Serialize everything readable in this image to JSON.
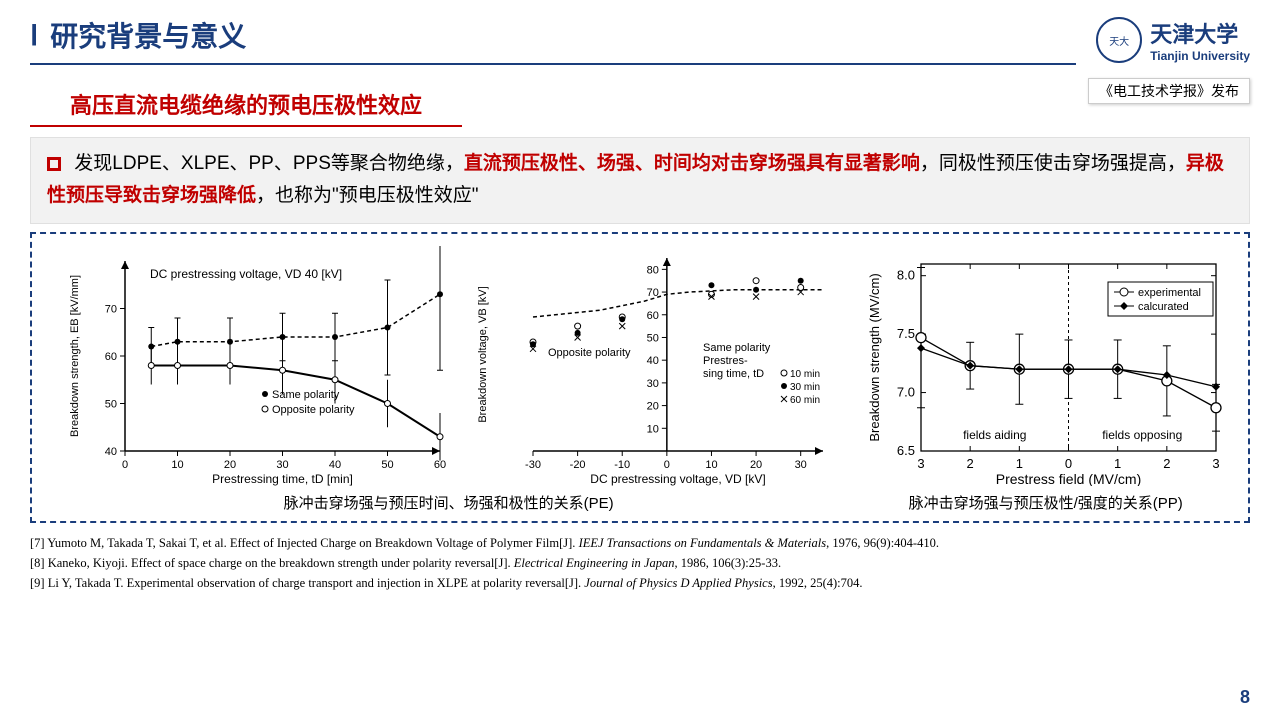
{
  "header": {
    "roman": "Ⅰ",
    "title": "研究背景与意义",
    "uni_cn": "天津大学",
    "uni_en": "Tianjin University",
    "tag": "《电工技术学报》发布"
  },
  "subtitle": "高压直流电缆绝缘的预电压极性效应",
  "textbox": {
    "t1": "发现LDPE、XLPE、PP、PPS等聚合物绝缘，",
    "t2": "直流预压极性、场强、时间均对击穿场强具有显著影响",
    "t3": "，同极性预压使击穿场强提高，",
    "t4": "异极性预压导致击穿场强降低",
    "t5": "，也称为\"预电压极性效应\""
  },
  "chart1": {
    "type": "line-with-errorbars",
    "title": "DC prestressing voltage, VD 40 [kV]",
    "ylabel": "Breakdown strength, EB [kV/mm]",
    "xlabel": "Prestressing time, tD [min]",
    "xlim": [
      0,
      60
    ],
    "ylim": [
      40,
      80
    ],
    "xticks": [
      0,
      10,
      20,
      30,
      40,
      50,
      60
    ],
    "yticks": [
      40,
      50,
      60,
      70
    ],
    "same_x": [
      5,
      10,
      20,
      30,
      40,
      50,
      60
    ],
    "same_y": [
      62,
      63,
      63,
      64,
      64,
      66,
      73
    ],
    "same_err": [
      4,
      5,
      5,
      5,
      5,
      10,
      16
    ],
    "opp_x": [
      5,
      10,
      20,
      30,
      40,
      50,
      60
    ],
    "opp_y": [
      58,
      58,
      58,
      57,
      55,
      50,
      43
    ],
    "opp_err": [
      4,
      4,
      4,
      5,
      5,
      5,
      5
    ],
    "legend1": "Same polarity",
    "legend2": "Opposite polarity",
    "line_color": "#000000",
    "bg": "#ffffff",
    "grid_color": "#000000"
  },
  "chart2": {
    "type": "scatter-line",
    "ylabel": "Breakdown voltage, VB [kV]",
    "xlabel": "DC prestressing voltage, VD [kV]",
    "label_opp": "Opposite polarity",
    "label_same": "Same polarity\nPrestres-\nsing time, tD",
    "xlim": [
      -30,
      35
    ],
    "ylim": [
      0,
      85
    ],
    "xticks": [
      -30,
      -20,
      -10,
      0,
      10,
      20,
      30
    ],
    "yticks": [
      10,
      20,
      30,
      40,
      50,
      60,
      70,
      80
    ],
    "curve_x": [
      -30,
      -25,
      -20,
      -15,
      -10,
      -5,
      0,
      5,
      10,
      15,
      20,
      25,
      30,
      35
    ],
    "curve_y": [
      59,
      60,
      61,
      62,
      64,
      66,
      69,
      70,
      70.5,
      71,
      71,
      71,
      71,
      71
    ],
    "legend_items": [
      "10 min",
      "30 min",
      "60 min"
    ],
    "markers": [
      "circle",
      "filled-circle",
      "x"
    ],
    "scatter": [
      {
        "x": -30,
        "y": 48,
        "m": "circle"
      },
      {
        "x": -20,
        "y": 55,
        "m": "circle"
      },
      {
        "x": -10,
        "y": 59,
        "m": "circle"
      },
      {
        "x": 10,
        "y": 69,
        "m": "circle"
      },
      {
        "x": 20,
        "y": 75,
        "m": "circle"
      },
      {
        "x": 30,
        "y": 72,
        "m": "circle"
      },
      {
        "x": -30,
        "y": 47,
        "m": "dot"
      },
      {
        "x": -20,
        "y": 52,
        "m": "dot"
      },
      {
        "x": -10,
        "y": 58,
        "m": "dot"
      },
      {
        "x": 10,
        "y": 73,
        "m": "dot"
      },
      {
        "x": 20,
        "y": 71,
        "m": "dot"
      },
      {
        "x": 30,
        "y": 75,
        "m": "dot"
      },
      {
        "x": -30,
        "y": 45,
        "m": "x"
      },
      {
        "x": -20,
        "y": 50,
        "m": "x"
      },
      {
        "x": -10,
        "y": 55,
        "m": "x"
      },
      {
        "x": 10,
        "y": 68,
        "m": "x"
      },
      {
        "x": 20,
        "y": 68,
        "m": "x"
      },
      {
        "x": 30,
        "y": 70,
        "m": "x"
      }
    ],
    "line_color": "#000000"
  },
  "chart3": {
    "type": "line-with-errorbars",
    "ylabel": "Breakdown strength (MV/cm)",
    "xlabel": "Prestress field (MV/cm)",
    "material": "PP",
    "xlim": [
      0,
      6
    ],
    "ylim": [
      6.5,
      8.1
    ],
    "xticks": [
      "3",
      "2",
      "1",
      "0",
      "1",
      "2",
      "3"
    ],
    "yticks": [
      6.5,
      7.0,
      7.5,
      8.0
    ],
    "left_label": "fields aiding",
    "right_label": "fields opposing",
    "legend1": "experimental",
    "legend2": "calcurated",
    "exp_x": [
      0,
      1,
      2,
      3,
      4,
      5,
      6
    ],
    "exp_y": [
      7.47,
      7.23,
      7.2,
      7.2,
      7.2,
      7.1,
      6.87
    ],
    "exp_err": [
      0.6,
      0.2,
      0.3,
      0.25,
      0.25,
      0.3,
      0.2
    ],
    "calc_x": [
      0,
      1,
      2,
      3,
      4,
      5,
      6
    ],
    "calc_y": [
      7.38,
      7.23,
      7.2,
      7.2,
      7.2,
      7.15,
      7.05
    ],
    "line_color": "#000000"
  },
  "captions": {
    "left": "脉冲击穿场强与预压时间、场强和极性的关系(PE)",
    "right": "脉冲击穿场强与预压极性/强度的关系(PP)"
  },
  "refs": [
    {
      "n": "[7]",
      "a": "Yumoto M, Takada T, Sakai T, et al. Effect of Injected Charge on Breakdown Voltage of Polymer Film[J]. ",
      "j": "IEEJ Transactions on Fundamentals & Materials",
      "t": ", 1976, 96(9):404-410."
    },
    {
      "n": "[8]",
      "a": "Kaneko, Kiyoji. Effect of space charge on the breakdown strength under polarity reversal[J]. ",
      "j": "Electrical Engineering in Japan",
      "t": ", 1986, 106(3):25-33."
    },
    {
      "n": "[9]",
      "a": "Li Y, Takada T. Experimental observation of charge transport and injection in XLPE at polarity reversal[J]. ",
      "j": "Journal of Physics D Applied Physics",
      "t": ", 1992, 25(4):704."
    }
  ],
  "page": "8"
}
